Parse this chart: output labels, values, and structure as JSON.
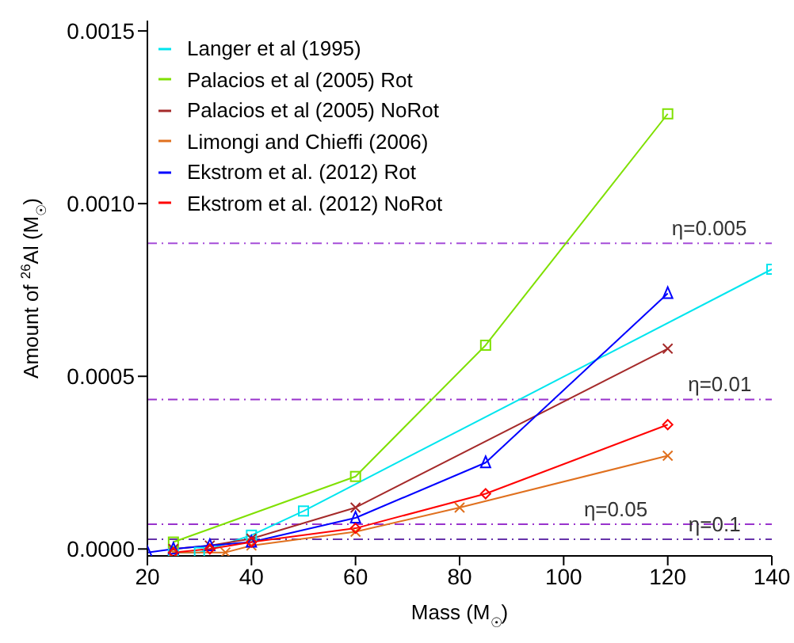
{
  "chart_data": {
    "type": "line",
    "xlabel": "Mass (M$_{☉}$)",
    "ylabel": "Amount of $^{26}$Al (M$_{☉}$)",
    "xlim": [
      20,
      140
    ],
    "xticks": [
      20,
      40,
      60,
      80,
      100,
      120,
      140
    ],
    "ylim": [
      -2e-05,
      0.00153
    ],
    "yticks": [
      {
        "value": 0,
        "label": "0.0000"
      },
      {
        "value": 0.0005,
        "label": "0.0005"
      },
      {
        "value": 0.001,
        "label": "0.0010"
      },
      {
        "value": 0.0015,
        "label": "0.0015"
      }
    ],
    "grid": false,
    "legend": "top left",
    "series": [
      {
        "name": "Langer et al (1995)",
        "color": "#00e5ee",
        "marker": "square",
        "x": [
          25,
          30,
          40,
          50,
          140
        ],
        "values": [
          -1e-05,
          -1e-05,
          4e-05,
          0.00011,
          0.00081
        ]
      },
      {
        "name": "Palacios et al (2005) Rot",
        "color": "#7fe000",
        "marker": "square",
        "x": [
          25,
          60,
          85,
          120
        ],
        "values": [
          2e-05,
          0.00021,
          0.00059,
          0.00126
        ]
      },
      {
        "name": "Palacios et al (2005) NoRot",
        "color": "#a52a2a",
        "marker": "cross",
        "x": [
          25,
          32,
          40,
          60,
          120
        ],
        "values": [
          0,
          1e-05,
          3e-05,
          0.00012,
          0.00058
        ]
      },
      {
        "name": "Limongi and Chieffi (2006)",
        "color": "#e0701e",
        "marker": "cross",
        "x": [
          25,
          35,
          40,
          60,
          80,
          120
        ],
        "values": [
          -1e-05,
          -1e-05,
          1e-05,
          5e-05,
          0.00012,
          0.00027
        ]
      },
      {
        "name": "Ekstrom et al. (2012) Rot",
        "color": "#0000ff",
        "marker": "triangle",
        "x": [
          20,
          25,
          32,
          40,
          60,
          85,
          120
        ],
        "values": [
          -1e-05,
          0,
          1e-05,
          2e-05,
          9e-05,
          0.00025,
          0.00074
        ]
      },
      {
        "name": "Ekstrom et al. (2012) NoRot",
        "color": "#ff0000",
        "marker": "diamond",
        "x": [
          25,
          32,
          40,
          60,
          85,
          120
        ],
        "values": [
          -1e-05,
          0,
          2e-05,
          6e-05,
          0.00016,
          0.00036
        ]
      }
    ],
    "ref_lines": [
      {
        "axis": "y",
        "value": 0.000885,
        "color": "#a64dd9",
        "line_style": "dashdot"
      },
      {
        "axis": "y",
        "value": 0.000433,
        "color": "#9933cc",
        "line_style": "dashdot"
      },
      {
        "axis": "y",
        "value": 7.2e-05,
        "color": "#9933cc",
        "line_style": "dashdot"
      },
      {
        "axis": "y",
        "value": 2.8e-05,
        "color": "#6633aa",
        "line_style": "dashdot"
      }
    ],
    "annotations": [
      {
        "text": "η=0.005",
        "x": 128,
        "y": 0.000885
      },
      {
        "text": "η=0.01",
        "x": 130,
        "y": 0.000433
      },
      {
        "text": "η=0.05",
        "x": 110,
        "y": 7.2e-05
      },
      {
        "text": "η=0.1",
        "x": 129,
        "y": 2.8e-05
      }
    ]
  }
}
